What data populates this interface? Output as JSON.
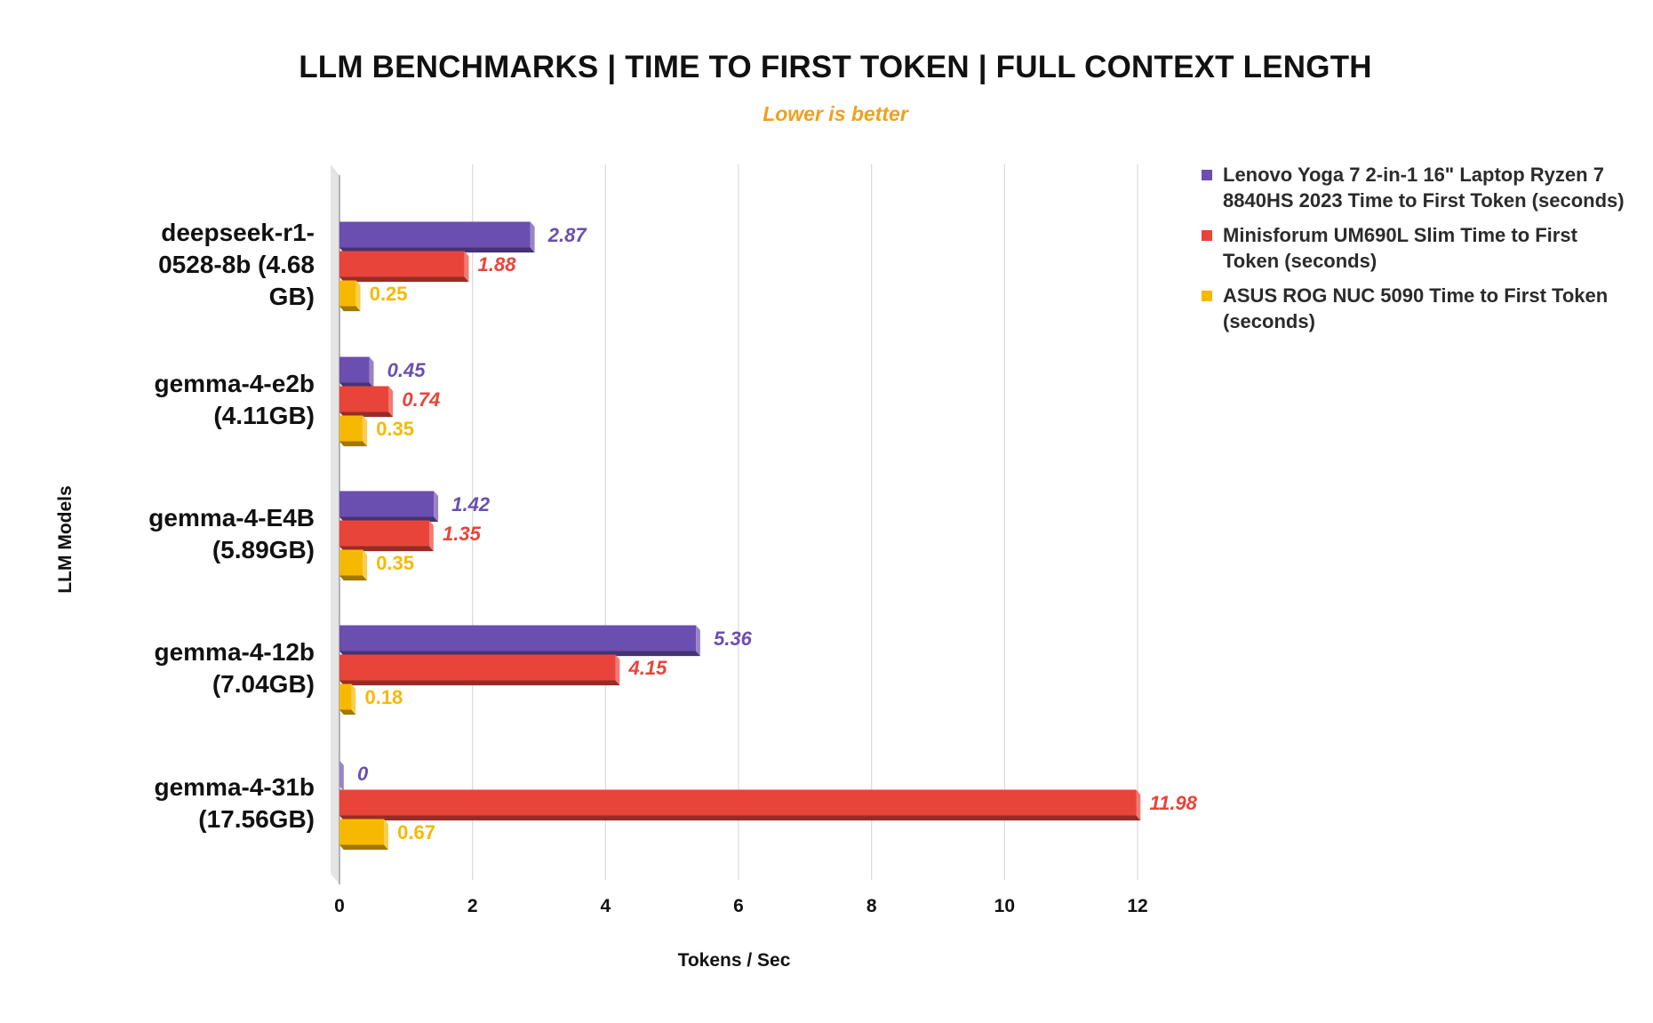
{
  "chart_data": {
    "type": "bar",
    "orientation": "horizontal",
    "title": "LLM BENCHMARKS | TIME TO FIRST TOKEN | FULL CONTEXT LENGTH",
    "subtitle": "Lower is better",
    "xlabel": "Tokens / Sec",
    "ylabel": "LLM Models",
    "xlim": [
      0,
      12
    ],
    "xticks": [
      "0",
      "2",
      "4",
      "6",
      "8",
      "10",
      "12"
    ],
    "grid": true,
    "legend_position": "right",
    "categories": [
      "deepseek-r1-0528-8b (4.68 GB)",
      "gemma-4-e2b (4.11GB)",
      "gemma-4-E4B (5.89GB)",
      "gemma-4-12b (7.04GB)",
      "gemma-4-31b (17.56GB)"
    ],
    "category_lines": [
      [
        "deepseek-r1-",
        "0528-8b (4.68",
        "GB)"
      ],
      [
        "gemma-4-e2b",
        "(4.11GB)"
      ],
      [
        "gemma-4-E4B",
        "(5.89GB)"
      ],
      [
        "gemma-4-12b",
        "(7.04GB)"
      ],
      [
        "gemma-4-31b",
        "(17.56GB)"
      ]
    ],
    "series": [
      {
        "name": "Lenovo Yoga 7 2-in-1 16\" Laptop Ryzen 7 8840HS 2023 Time to First Token (seconds)",
        "color": "#6a4fb0",
        "values": [
          2.87,
          0.45,
          1.42,
          5.36,
          0
        ],
        "value_labels": [
          "2.87",
          "0.45",
          "1.42",
          "5.36",
          "0"
        ]
      },
      {
        "name": "Minisforum UM690L Slim Time to First Token (seconds)",
        "color": "#e8443a",
        "values": [
          1.88,
          0.74,
          1.35,
          4.15,
          11.98
        ],
        "value_labels": [
          "1.88",
          "0.74",
          "1.35",
          "4.15",
          "11.98"
        ]
      },
      {
        "name": "ASUS ROG NUC 5090 Time to First Token (seconds)",
        "color": "#f7b900",
        "values": [
          0.25,
          0.35,
          0.35,
          0.18,
          0.67
        ],
        "value_labels": [
          "0.25",
          "0.35",
          "0.35",
          "0.18",
          "0.67"
        ]
      }
    ]
  }
}
